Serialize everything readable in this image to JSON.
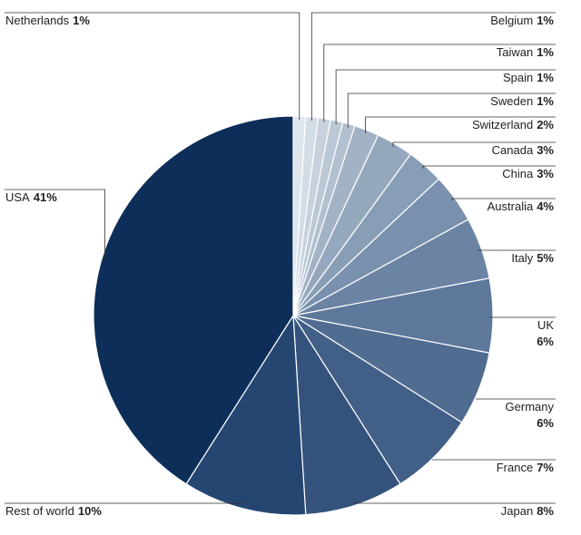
{
  "chart_data": {
    "type": "pie",
    "categories": [
      "Netherlands",
      "Belgium",
      "Taiwan",
      "Spain",
      "Sweden",
      "Switzerland",
      "Canada",
      "China",
      "Australia",
      "Italy",
      "UK",
      "Germany",
      "France",
      "Japan",
      "Rest of world",
      "USA"
    ],
    "values": [
      1,
      1,
      1,
      1,
      1,
      2,
      3,
      3,
      4,
      5,
      6,
      6,
      7,
      8,
      10,
      41
    ],
    "value_labels": [
      "1%",
      "1%",
      "1%",
      "1%",
      "1%",
      "2%",
      "3%",
      "3%",
      "4%",
      "5%",
      "6%",
      "6%",
      "7%",
      "8%",
      "10%",
      "41%"
    ],
    "colors": [
      "#dfe5ec",
      "#d4dce6",
      "#c8d2de",
      "#bcc8d6",
      "#b1bfcf",
      "#a3b3c6",
      "#95a8be",
      "#889db6",
      "#7a91ad",
      "#6b84a3",
      "#5d789a",
      "#506c91",
      "#425f87",
      "#34527c",
      "#264672",
      "#0d2e58"
    ]
  }
}
